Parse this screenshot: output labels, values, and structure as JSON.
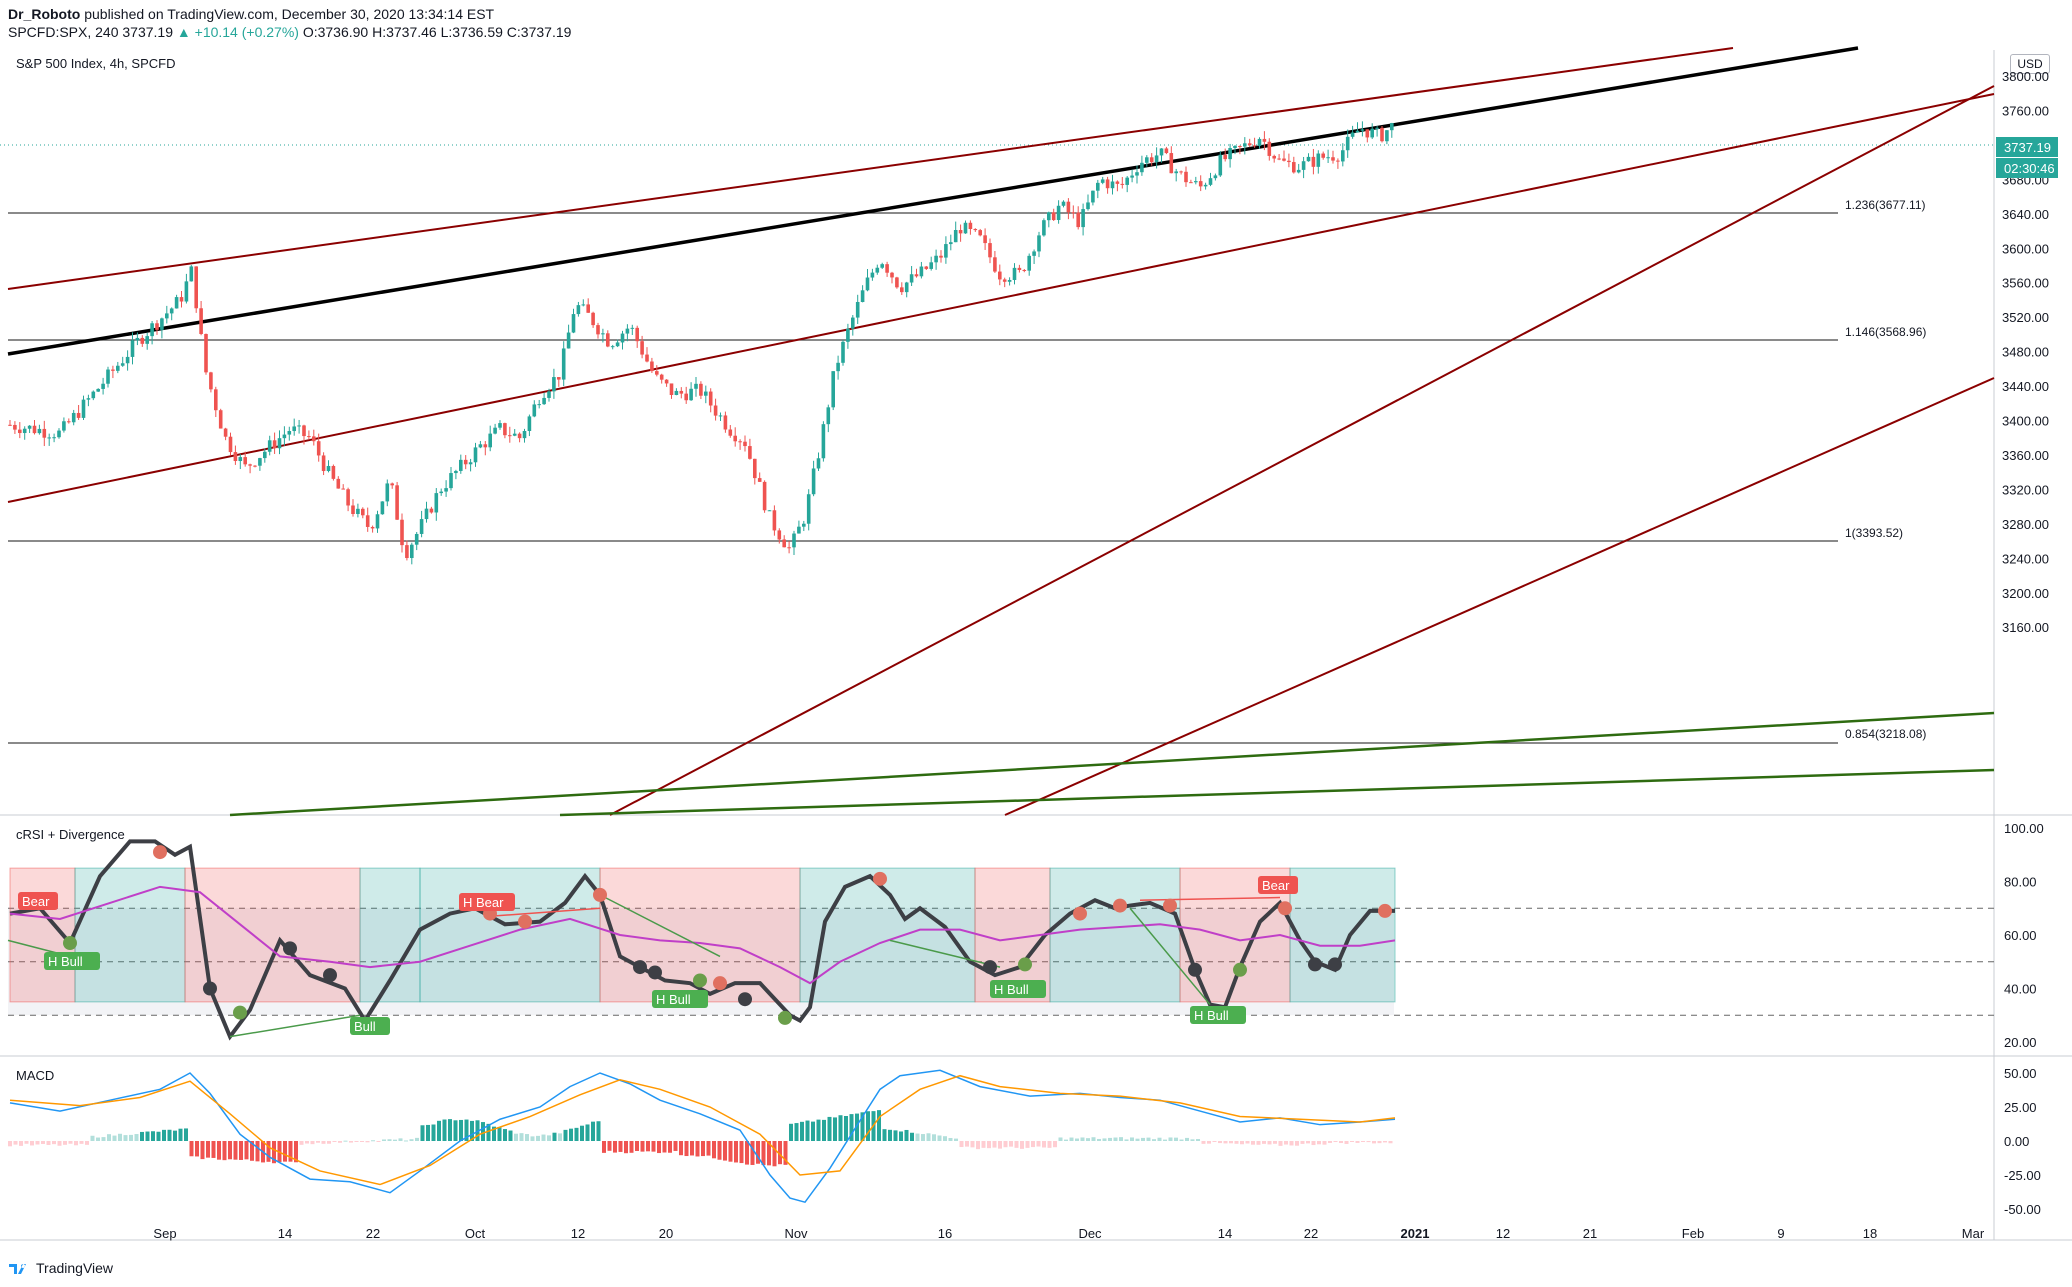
{
  "header": {
    "author": "Dr_Roboto",
    "published_text": " published on TradingView.com, December 30, 2020 13:34:14 EST",
    "symbol": "SPCFD:SPX, 240",
    "last": "3737.19",
    "change": "▲ +10.14 (+0.27%)",
    "open": "O:3736.90",
    "high": "H:3737.46",
    "low": "L:3736.59",
    "close": "C:3737.19"
  },
  "main_pane": {
    "title": "S&P 500 Index, 4h, SPCFD",
    "currency": "USD",
    "price_badge": "3737.19",
    "countdown_badge": "02:30:46",
    "price_ticks": [
      "3800.00",
      "3760.00",
      "3720.00",
      "3680.00",
      "3640.00",
      "3600.00",
      "3560.00",
      "3520.00",
      "3480.00",
      "3440.00",
      "3400.00",
      "3360.00",
      "3320.00",
      "3280.00",
      "3240.00",
      "3200.00",
      "3160.00"
    ],
    "fib_labels": [
      "1.236(3677.11)",
      "1.146(3568.96)",
      "1(3393.52)",
      "0.854(3218.08)"
    ]
  },
  "crsi_pane": {
    "title": "cRSI + Divergence",
    "ticks": [
      "100.00",
      "80.00",
      "60.00",
      "40.00",
      "20.00"
    ],
    "badges": {
      "bear1": "Bear",
      "hbull1": "H Bull",
      "hbear": "H Bear",
      "bull": "Bull",
      "hbull2": "H Bull",
      "hbull3": "H Bull",
      "hbull4": "H Bull",
      "bear2": "Bear"
    }
  },
  "macd_pane": {
    "title": "MACD",
    "ticks": [
      "50.00",
      "25.00",
      "0.00",
      "-25.00",
      "-50.00"
    ]
  },
  "time_axis": [
    "Sep",
    "14",
    "22",
    "Oct",
    "12",
    "20",
    "Nov",
    "16",
    "Dec",
    "14",
    "22",
    "2021",
    "12",
    "21",
    "Feb",
    "9",
    "18",
    "Mar"
  ],
  "footer": {
    "brand": "TradingView"
  },
  "colors": {
    "up": "#26a69a",
    "down": "#ef5350",
    "channel": "#8b0000",
    "trend": "#000000",
    "green_trend": "#2e6b10",
    "fib": "#555555"
  },
  "chart_data": {
    "type": "candlestick",
    "title": "S&P 500 Index, 4h, SPCFD",
    "ylim": [
      3150,
      3820
    ],
    "last_price": 3737.19
  }
}
